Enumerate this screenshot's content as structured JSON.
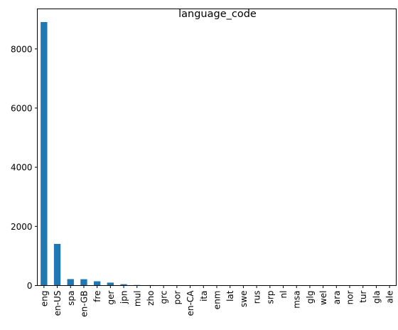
{
  "chart_data": {
    "type": "bar",
    "title": "language_code",
    "xlabel": "",
    "ylabel": "",
    "categories": [
      "eng",
      "en-US",
      "spa",
      "en-GB",
      "fre",
      "ger",
      "jpn",
      "mul",
      "zho",
      "grc",
      "por",
      "en-CA",
      "ita",
      "enm",
      "lat",
      "swe",
      "rus",
      "srp",
      "nl",
      "msa",
      "glg",
      "wel",
      "ara",
      "nor",
      "tur",
      "gla",
      "ale"
    ],
    "values": [
      8908,
      1408,
      218,
      214,
      144,
      99,
      46,
      19,
      14,
      11,
      10,
      7,
      5,
      3,
      3,
      2,
      2,
      1,
      1,
      1,
      1,
      1,
      1,
      1,
      1,
      1,
      1
    ],
    "ylim": [
      0,
      9353
    ],
    "yticks": [
      0,
      2000,
      4000,
      6000,
      8000
    ],
    "bar_color": "#1f77b4",
    "grid": false,
    "legend": "none"
  }
}
